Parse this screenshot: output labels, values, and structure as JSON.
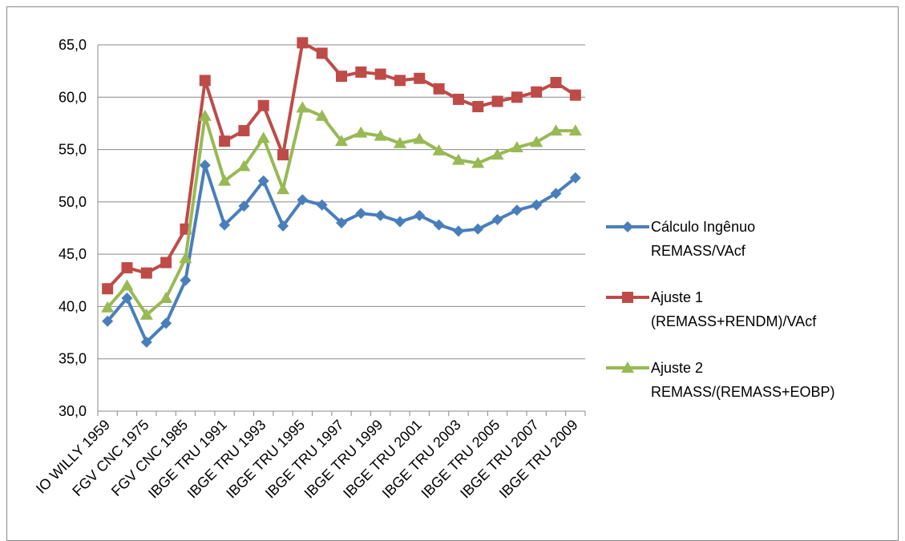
{
  "chart_data": {
    "type": "line",
    "categories": [
      "IO WILLY 1959",
      null,
      "FGV CNC 1975",
      null,
      "FGV CNC 1985",
      null,
      "IBGE TRU 1991",
      null,
      "IBGE TRU 1993",
      null,
      "IBGE TRU 1995",
      null,
      "IBGE TRU 1997",
      null,
      "IBGE TRU 1999",
      null,
      "IBGE TRU 2001",
      null,
      "IBGE TRU 2003",
      null,
      "IBGE TRU 2005",
      null,
      "IBGE TRU 2007",
      null,
      "IBGE TRU 2009"
    ],
    "series": [
      {
        "name": "Cálculo Ingênuo REMASS/VAcf",
        "color": "#4a7ebb",
        "marker": "diamond",
        "values": [
          38.6,
          40.8,
          36.6,
          38.4,
          42.5,
          53.5,
          47.8,
          49.6,
          52.0,
          47.7,
          50.2,
          49.7,
          48.0,
          48.9,
          48.7,
          48.1,
          48.7,
          47.8,
          47.2,
          47.4,
          48.3,
          49.2,
          49.7,
          50.8,
          52.3
        ]
      },
      {
        "name": "Ajuste 1 (REMASS+RENDM)/VAcf",
        "color": "#be4b48",
        "marker": "square",
        "values": [
          41.7,
          43.7,
          43.2,
          44.2,
          47.4,
          61.6,
          55.8,
          56.8,
          59.2,
          54.5,
          65.2,
          64.2,
          62.0,
          62.4,
          62.2,
          61.6,
          61.8,
          60.8,
          59.8,
          59.1,
          59.6,
          60.0,
          60.5,
          61.4,
          60.2
        ]
      },
      {
        "name": "Ajuste 2 REMASS/(REMASS+EOBP)",
        "color": "#98b954",
        "marker": "triangle",
        "values": [
          39.9,
          42.0,
          39.2,
          40.8,
          44.6,
          58.2,
          52.0,
          53.4,
          56.1,
          51.2,
          59.0,
          58.2,
          55.8,
          56.6,
          56.3,
          55.6,
          56.0,
          54.9,
          54.0,
          53.7,
          54.5,
          55.2,
          55.7,
          56.8,
          56.8
        ]
      }
    ],
    "ylim": [
      30,
      65
    ],
    "yticks": [
      {
        "value": 30,
        "label": "30,0"
      },
      {
        "value": 35,
        "label": "35,0"
      },
      {
        "value": 40,
        "label": "40,0"
      },
      {
        "value": 45,
        "label": "45,0"
      },
      {
        "value": 50,
        "label": "50,0"
      },
      {
        "value": 55,
        "label": "55,0"
      },
      {
        "value": 60,
        "label": "60,0"
      },
      {
        "value": 65,
        "label": "65,0"
      }
    ],
    "grid": true,
    "legend": "right"
  }
}
